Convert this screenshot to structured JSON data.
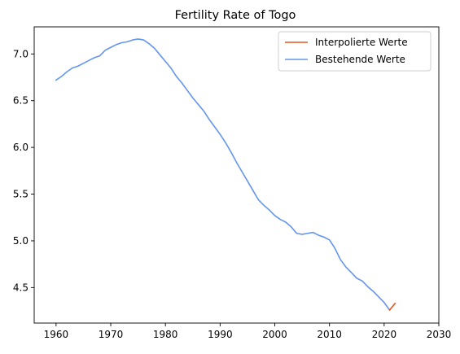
{
  "chart_data": {
    "type": "line",
    "title": "Fertility Rate of Togo",
    "xlabel": "",
    "ylabel": "",
    "xlim": [
      1956,
      2030
    ],
    "ylim": [
      4.12,
      7.29
    ],
    "xticks": [
      1960,
      1970,
      1980,
      1990,
      2000,
      2010,
      2020,
      2030
    ],
    "yticks": [
      4.5,
      5.0,
      5.5,
      6.0,
      6.5,
      7.0
    ],
    "ytick_labels": [
      "4.5",
      "5.0",
      "5.5",
      "6.0",
      "6.5",
      "7.0"
    ],
    "grid": false,
    "legend_position": "top-right",
    "series": [
      {
        "name": "Interpolierte Werte",
        "color": "#e8541c",
        "x": [
          2021,
          2022
        ],
        "y": [
          4.26,
          4.33
        ]
      },
      {
        "name": "Bestehende Werte",
        "color": "#6495ed",
        "x": [
          1960,
          1961,
          1962,
          1963,
          1964,
          1965,
          1966,
          1967,
          1968,
          1969,
          1970,
          1971,
          1972,
          1973,
          1974,
          1975,
          1976,
          1977,
          1978,
          1979,
          1980,
          1981,
          1982,
          1983,
          1984,
          1985,
          1986,
          1987,
          1988,
          1989,
          1990,
          1991,
          1992,
          1993,
          1994,
          1995,
          1996,
          1997,
          1998,
          1999,
          2000,
          2001,
          2002,
          2003,
          2004,
          2005,
          2006,
          2007,
          2008,
          2009,
          2010,
          2011,
          2012,
          2013,
          2014,
          2015,
          2016,
          2017,
          2018,
          2019,
          2020,
          2021
        ],
        "y": [
          6.72,
          6.76,
          6.81,
          6.85,
          6.87,
          6.9,
          6.93,
          6.96,
          6.98,
          7.04,
          7.07,
          7.1,
          7.12,
          7.13,
          7.15,
          7.16,
          7.15,
          7.11,
          7.06,
          6.99,
          6.92,
          6.85,
          6.76,
          6.69,
          6.61,
          6.53,
          6.46,
          6.39,
          6.3,
          6.22,
          6.14,
          6.05,
          5.95,
          5.84,
          5.74,
          5.64,
          5.54,
          5.44,
          5.38,
          5.33,
          5.27,
          5.23,
          5.2,
          5.15,
          5.08,
          5.07,
          5.08,
          5.09,
          5.06,
          5.04,
          5.01,
          4.92,
          4.8,
          4.72,
          4.66,
          4.6,
          4.57,
          4.51,
          4.46,
          4.4,
          4.34,
          4.26
        ]
      }
    ]
  }
}
